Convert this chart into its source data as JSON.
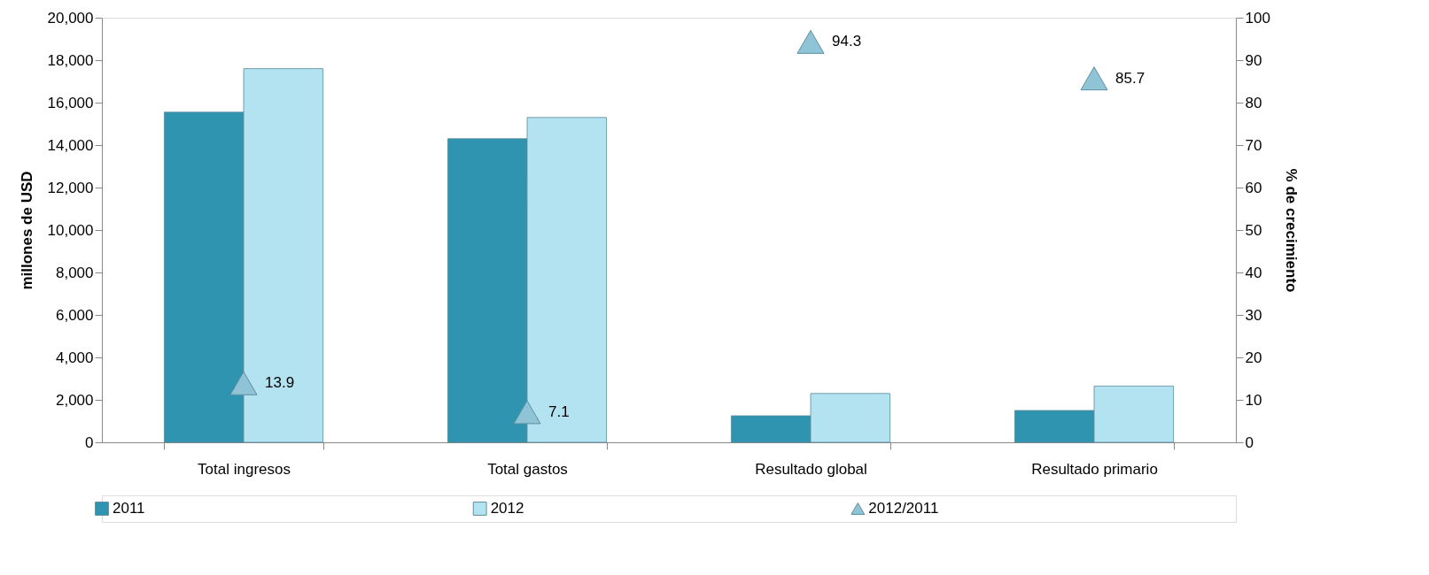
{
  "chart_data": {
    "type": "bar",
    "categories": [
      "Total ingresos",
      "Total gastos",
      "Resultado global",
      "Resultado primario"
    ],
    "ylabel": "millones de USD",
    "y2label": "% de crecimiento",
    "ylim": [
      0,
      20000
    ],
    "yticks": [
      {
        "value": 0,
        "label": "0"
      },
      {
        "value": 2000,
        "label": "2,000"
      },
      {
        "value": 4000,
        "label": "4,000"
      },
      {
        "value": 6000,
        "label": "6,000"
      },
      {
        "value": 8000,
        "label": "8,000"
      },
      {
        "value": 10000,
        "label": "10,000"
      },
      {
        "value": 12000,
        "label": "12,000"
      },
      {
        "value": 14000,
        "label": "14,000"
      },
      {
        "value": 16000,
        "label": "16,000"
      },
      {
        "value": 18000,
        "label": "18,000"
      },
      {
        "value": 20000,
        "label": "20,000"
      }
    ],
    "y2lim": [
      0,
      100
    ],
    "y2ticks": [
      0,
      10,
      20,
      30,
      40,
      50,
      60,
      70,
      80,
      90,
      100
    ],
    "grid": false,
    "legend": "bottom",
    "series": [
      {
        "name": "2011",
        "color": "#2e94b0",
        "values": [
          15550,
          14300,
          1250,
          1500
        ]
      },
      {
        "name": "2012",
        "color": "#b3e3f0",
        "values": [
          17600,
          15300,
          2300,
          2650
        ]
      },
      {
        "name": "2012/2011",
        "type": "scatter",
        "axis": "y2",
        "marker": "triangle",
        "color": "#8fc3d6",
        "values": [
          13.9,
          7.1,
          94.3,
          85.7
        ],
        "value_labels": [
          "13.9",
          "7.1",
          "94.3",
          "85.7"
        ]
      }
    ]
  }
}
